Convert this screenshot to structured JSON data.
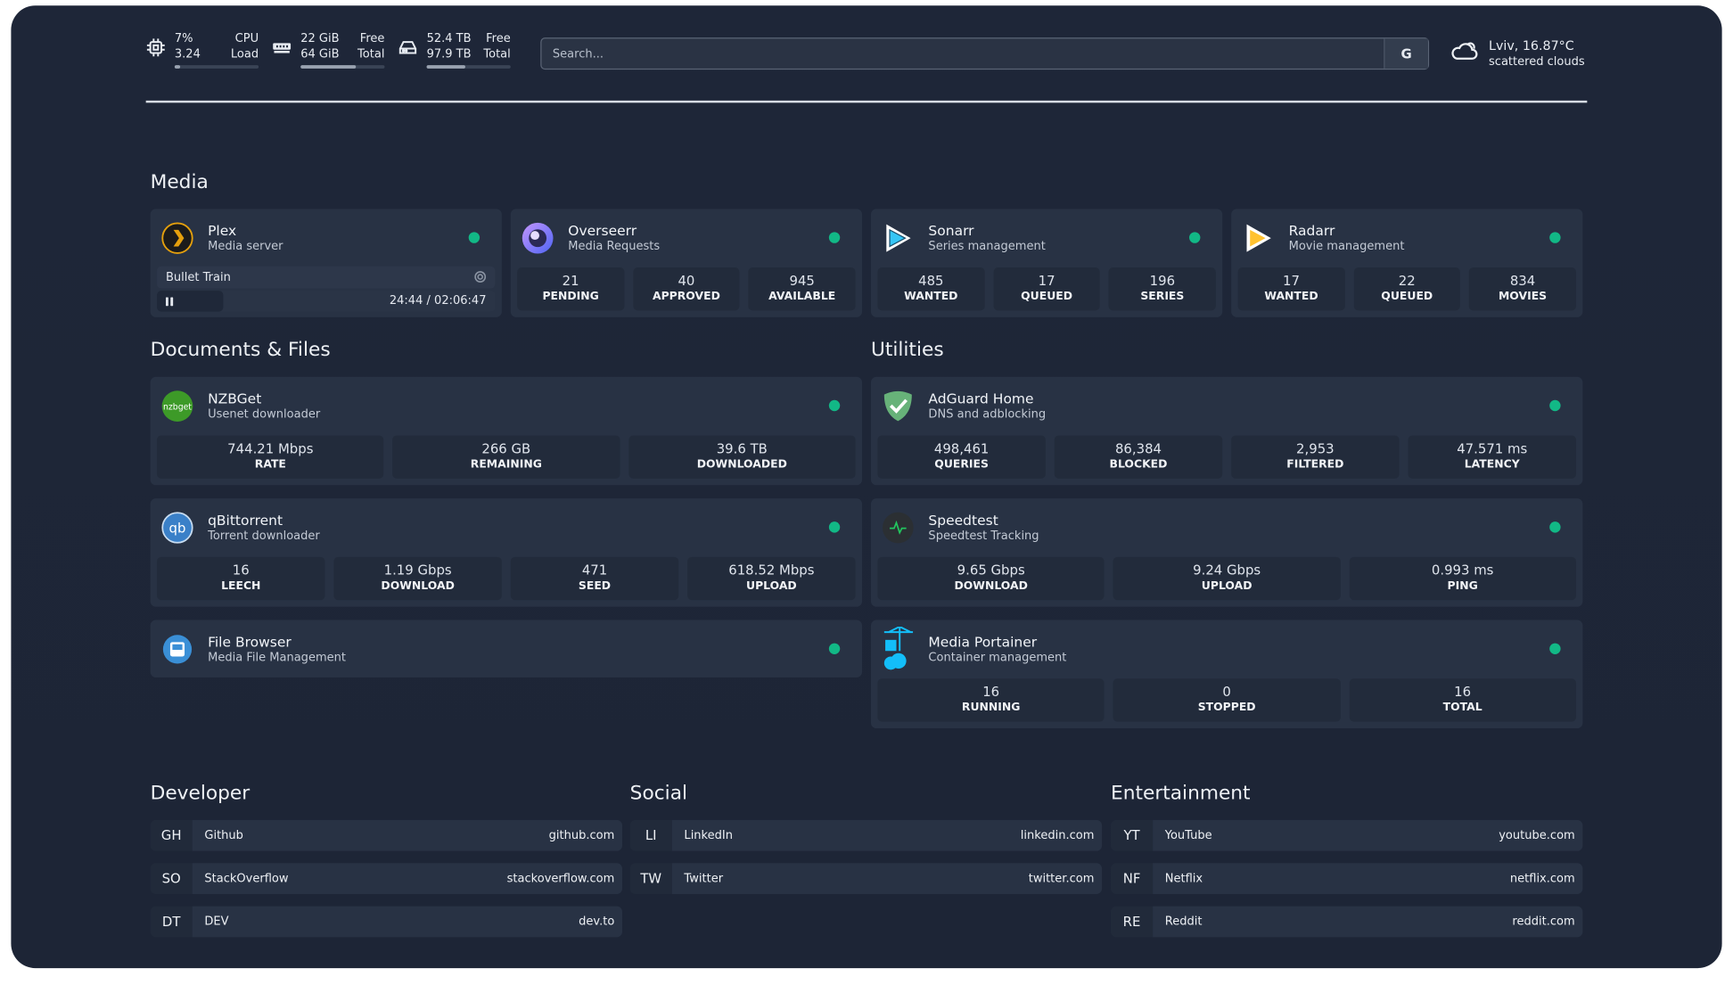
{
  "header": {
    "cpu": {
      "icon": "cpu-icon",
      "value1": "7%",
      "label1": "CPU",
      "value2": "3.24",
      "label2": "Load",
      "percent": 7
    },
    "memory": {
      "icon": "memory-icon",
      "value1": "22 GiB",
      "label1": "Free",
      "value2": "64 GiB",
      "label2": "Total",
      "percent": 66
    },
    "disk": {
      "icon": "hard-drive-icon",
      "value1": "52.4 TB",
      "label1": "Free",
      "value2": "97.9 TB",
      "label2": "Total",
      "percent": 46
    },
    "search": {
      "placeholder": "Search...",
      "button": "G"
    },
    "weather": {
      "icon": "cloud-icon",
      "location": "Lviv, 16.87°C",
      "condition": "scattered clouds"
    }
  },
  "sections": {
    "media": "Media",
    "documents": "Documents & Files",
    "utilities": "Utilities",
    "developer": "Developer",
    "social": "Social",
    "entertainment": "Entertainment"
  },
  "colors": {
    "status_online": "#12b886",
    "card": "#283244",
    "background": "#1e2638"
  },
  "plex": {
    "name": "Plex",
    "description": "Media server",
    "now_playing": "Bullet Train",
    "time": "24:44 / 02:06:47",
    "progress_percent": 19.5
  },
  "media": [
    {
      "id": "overseerr",
      "name": "Overseerr",
      "description": "Media Requests",
      "stats": [
        {
          "v": "21",
          "l": "PENDING"
        },
        {
          "v": "40",
          "l": "APPROVED"
        },
        {
          "v": "945",
          "l": "AVAILABLE"
        }
      ]
    },
    {
      "id": "sonarr",
      "name": "Sonarr",
      "description": "Series management",
      "stats": [
        {
          "v": "485",
          "l": "WANTED"
        },
        {
          "v": "17",
          "l": "QUEUED"
        },
        {
          "v": "196",
          "l": "SERIES"
        }
      ]
    },
    {
      "id": "radarr",
      "name": "Radarr",
      "description": "Movie management",
      "stats": [
        {
          "v": "17",
          "l": "WANTED"
        },
        {
          "v": "22",
          "l": "QUEUED"
        },
        {
          "v": "834",
          "l": "MOVIES"
        }
      ]
    }
  ],
  "documents": [
    {
      "id": "nzbget",
      "name": "NZBGet",
      "description": "Usenet downloader",
      "stats": [
        {
          "v": "744.21 Mbps",
          "l": "RATE"
        },
        {
          "v": "266 GB",
          "l": "REMAINING"
        },
        {
          "v": "39.6 TB",
          "l": "DOWNLOADED"
        }
      ]
    },
    {
      "id": "qbittorrent",
      "name": "qBittorrent",
      "description": "Torrent downloader",
      "stats": [
        {
          "v": "16",
          "l": "LEECH"
        },
        {
          "v": "1.19 Gbps",
          "l": "DOWNLOAD"
        },
        {
          "v": "471",
          "l": "SEED"
        },
        {
          "v": "618.52 Mbps",
          "l": "UPLOAD"
        }
      ]
    },
    {
      "id": "filebrowser",
      "name": "File Browser",
      "description": "Media File Management",
      "stats": []
    }
  ],
  "utilities": [
    {
      "id": "adguard",
      "name": "AdGuard Home",
      "description": "DNS and adblocking",
      "stats": [
        {
          "v": "498,461",
          "l": "QUERIES"
        },
        {
          "v": "86,384",
          "l": "BLOCKED"
        },
        {
          "v": "2,953",
          "l": "FILTERED"
        },
        {
          "v": "47.571 ms",
          "l": "LATENCY"
        }
      ]
    },
    {
      "id": "speedtest",
      "name": "Speedtest",
      "description": "Speedtest Tracking",
      "stats": [
        {
          "v": "9.65 Gbps",
          "l": "DOWNLOAD"
        },
        {
          "v": "9.24 Gbps",
          "l": "UPLOAD"
        },
        {
          "v": "0.993 ms",
          "l": "PING"
        }
      ]
    },
    {
      "id": "portainer",
      "name": "Media Portainer",
      "description": "Container management",
      "stats": [
        {
          "v": "16",
          "l": "RUNNING"
        },
        {
          "v": "0",
          "l": "STOPPED"
        },
        {
          "v": "16",
          "l": "TOTAL"
        }
      ]
    }
  ],
  "bookmarks": {
    "developer": [
      {
        "abbr": "GH",
        "name": "Github",
        "url": "github.com"
      },
      {
        "abbr": "SO",
        "name": "StackOverflow",
        "url": "stackoverflow.com"
      },
      {
        "abbr": "DT",
        "name": "DEV",
        "url": "dev.to"
      }
    ],
    "social": [
      {
        "abbr": "LI",
        "name": "LinkedIn",
        "url": "linkedin.com"
      },
      {
        "abbr": "TW",
        "name": "Twitter",
        "url": "twitter.com"
      }
    ],
    "entertainment": [
      {
        "abbr": "YT",
        "name": "YouTube",
        "url": "youtube.com"
      },
      {
        "abbr": "NF",
        "name": "Netflix",
        "url": "netflix.com"
      },
      {
        "abbr": "RE",
        "name": "Reddit",
        "url": "reddit.com"
      }
    ]
  }
}
